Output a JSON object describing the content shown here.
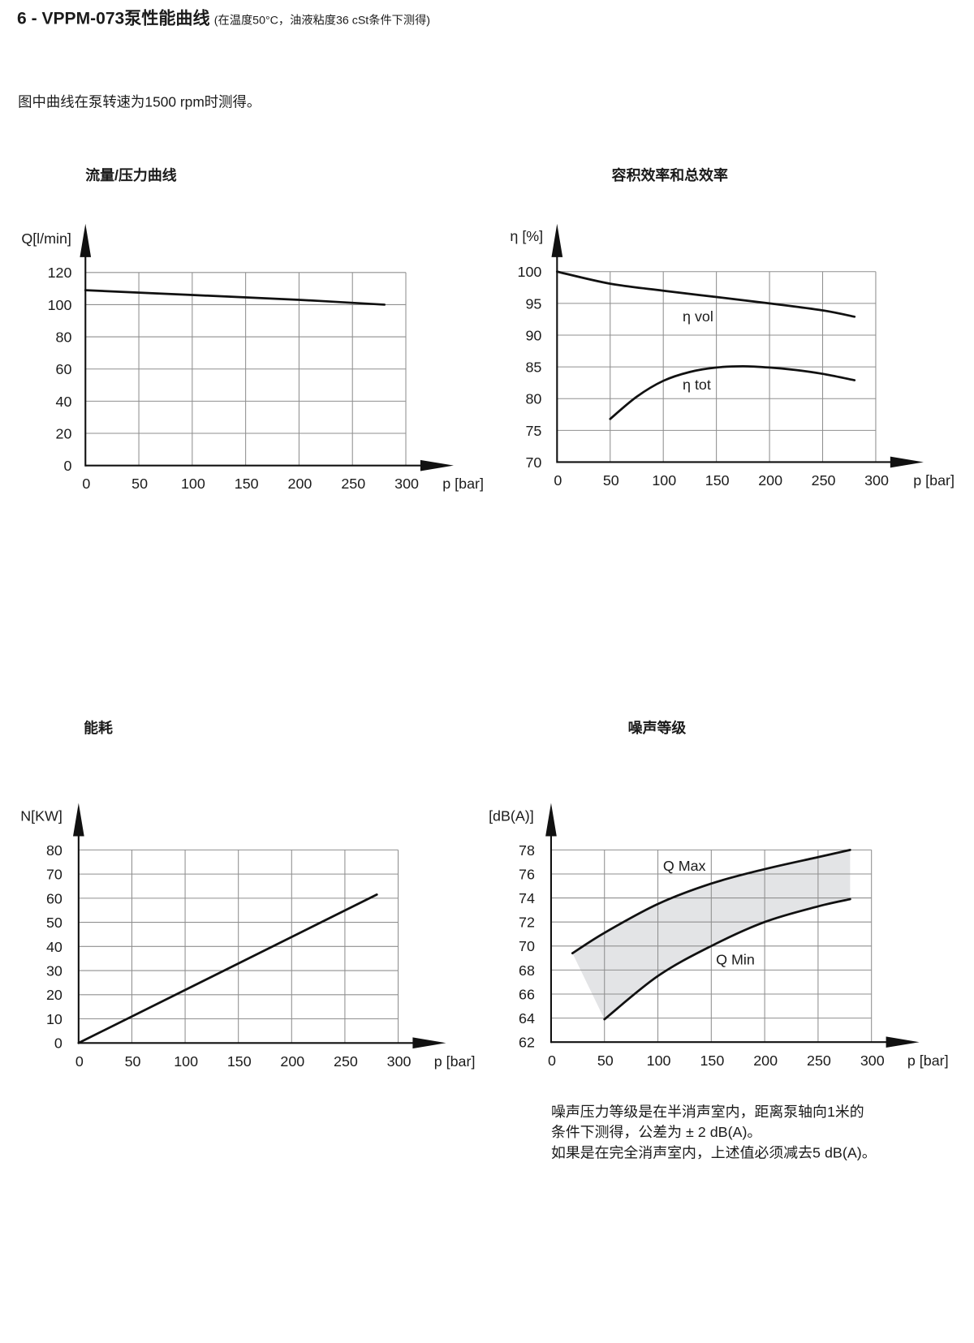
{
  "page": {
    "heading": "6 - VPPM-073泵性能曲线",
    "heading_note": "(在温度50°C，油液粘度36 cSt条件下测得)",
    "intro": "图中曲线在泵转速为1500 rpm时测得。",
    "noise_note": [
      "噪声压力等级是在半消声室内，距离泵轴向1米的",
      "条件下测得，公差为 ± 2 dB(A)。",
      "如果是在完全消声室内，上述值必须减去5 dB(A)。"
    ]
  },
  "colors": {
    "text": "#1b1b1b",
    "grid": "#8f8f8f",
    "axis": "#111111",
    "curve": "#111111",
    "band": "#e3e4e6"
  },
  "chart_data": [
    {
      "type": "line",
      "title": "流量/压力曲线",
      "xlabel": "p [bar]",
      "ylabel": "Q[l/min]",
      "xlim": [
        0,
        300
      ],
      "ylim": [
        0,
        120
      ],
      "x_ticks": [
        0,
        50,
        100,
        150,
        200,
        250,
        300
      ],
      "y_ticks": [
        0,
        20,
        40,
        60,
        80,
        100,
        120
      ],
      "grid": true,
      "series": [
        {
          "x": [
            0,
            100,
            200,
            280
          ],
          "y": [
            109,
            106,
            103,
            100
          ]
        }
      ]
    },
    {
      "type": "line",
      "title": "容积效率和总效率",
      "xlabel": "p [bar]",
      "ylabel": "η [%]",
      "xlim": [
        0,
        300
      ],
      "ylim": [
        70,
        100
      ],
      "x_ticks": [
        0,
        50,
        100,
        150,
        200,
        250,
        300
      ],
      "y_ticks": [
        70,
        75,
        80,
        85,
        90,
        95,
        100
      ],
      "grid": true,
      "series": [
        {
          "name": "η vol",
          "x": [
            0,
            50,
            100,
            150,
            200,
            250,
            280
          ],
          "y": [
            100,
            98.1,
            97,
            96,
            95,
            93.9,
            92.9
          ]
        },
        {
          "name": "η tot",
          "x": [
            50,
            75,
            100,
            125,
            150,
            175,
            200,
            225,
            250,
            280
          ],
          "y": [
            76.8,
            80.3,
            82.8,
            84.2,
            84.9,
            85.1,
            84.9,
            84.5,
            83.9,
            82.9
          ]
        }
      ]
    },
    {
      "type": "line",
      "title": "能耗",
      "xlabel": "p [bar]",
      "ylabel": "N[KW]",
      "xlim": [
        0,
        300
      ],
      "ylim": [
        0,
        80
      ],
      "x_ticks": [
        0,
        50,
        100,
        150,
        200,
        250,
        300
      ],
      "y_ticks": [
        0,
        10,
        20,
        30,
        40,
        50,
        60,
        70,
        80
      ],
      "grid": true,
      "series": [
        {
          "x": [
            0,
            280
          ],
          "y": [
            0,
            61.5
          ]
        }
      ]
    },
    {
      "type": "line",
      "title": "噪声等级",
      "xlabel": "p [bar]",
      "ylabel": "[dB(A)]",
      "xlim": [
        0,
        300
      ],
      "ylim": [
        62,
        78
      ],
      "x_ticks": [
        0,
        50,
        100,
        150,
        200,
        250,
        300
      ],
      "y_ticks": [
        62,
        64,
        66,
        68,
        70,
        72,
        74,
        76,
        78
      ],
      "grid": true,
      "shaded_between_series": true,
      "series": [
        {
          "name": "Q Max",
          "x": [
            20,
            50,
            100,
            150,
            200,
            250,
            280
          ],
          "y": [
            69.4,
            71.1,
            73.5,
            75.2,
            76.4,
            77.4,
            78
          ]
        },
        {
          "name": "Q Min",
          "x": [
            50,
            100,
            150,
            200,
            250,
            280
          ],
          "y": [
            63.9,
            67.5,
            70,
            72,
            73.3,
            73.9
          ]
        }
      ]
    }
  ]
}
